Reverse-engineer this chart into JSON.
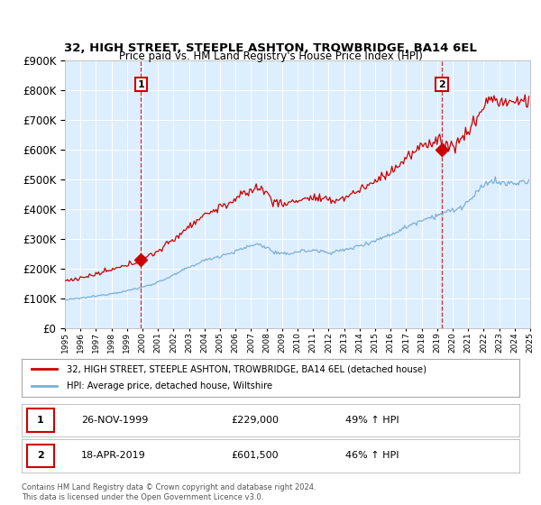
{
  "title": "32, HIGH STREET, STEEPLE ASHTON, TROWBRIDGE, BA14 6EL",
  "subtitle": "Price paid vs. HM Land Registry's House Price Index (HPI)",
  "sale1": {
    "date": 1999.9,
    "price": 229000,
    "label": "1",
    "display_date": "26-NOV-1999",
    "display_price": "£229,000",
    "display_pct": "49% ↑ HPI"
  },
  "sale2": {
    "date": 2019.3,
    "price": 601500,
    "label": "2",
    "display_date": "18-APR-2019",
    "display_price": "£601,500",
    "display_pct": "46% ↑ HPI"
  },
  "legend_red": "32, HIGH STREET, STEEPLE ASHTON, TROWBRIDGE, BA14 6EL (detached house)",
  "legend_blue": "HPI: Average price, detached house, Wiltshire",
  "footnote": "Contains HM Land Registry data © Crown copyright and database right 2024.\nThis data is licensed under the Open Government Licence v3.0.",
  "ylim": [
    0,
    900000
  ],
  "xlim": [
    1995,
    2025
  ],
  "red_color": "#cc0000",
  "blue_color": "#7bafd4",
  "bg_plot": "#ddeeff",
  "background": "#ffffff",
  "grid_color": "#ffffff"
}
